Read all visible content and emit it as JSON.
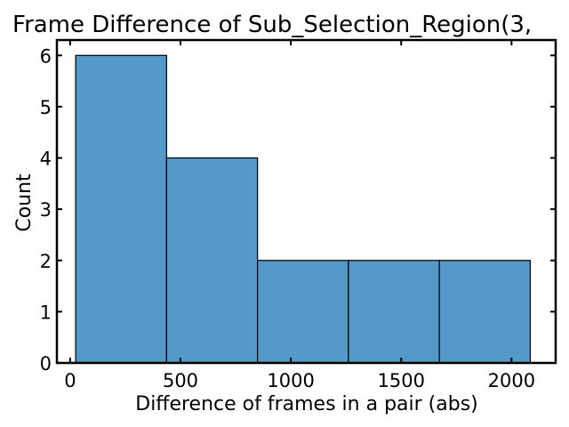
{
  "chart_data": {
    "type": "bar",
    "title": "Frame Difference of Sub_Selection_Region(3,",
    "xlabel": "Difference of frames in a pair (abs)",
    "ylabel": "Count",
    "bins": [
      {
        "start": 25,
        "end": 437,
        "count": 6
      },
      {
        "start": 437,
        "end": 849,
        "count": 4
      },
      {
        "start": 849,
        "end": 1261,
        "count": 2
      },
      {
        "start": 1261,
        "end": 1673,
        "count": 2
      },
      {
        "start": 1673,
        "end": 2085,
        "count": 2
      }
    ],
    "xlim": [
      -60,
      2200
    ],
    "ylim": [
      0,
      6.3
    ],
    "xticks": [
      0,
      500,
      1000,
      1500,
      2000
    ],
    "yticks": [
      0,
      1,
      2,
      3,
      4,
      5,
      6
    ],
    "bar_color": "#5499c7",
    "edge_color": "#000000",
    "grid": false,
    "legend": "none"
  }
}
